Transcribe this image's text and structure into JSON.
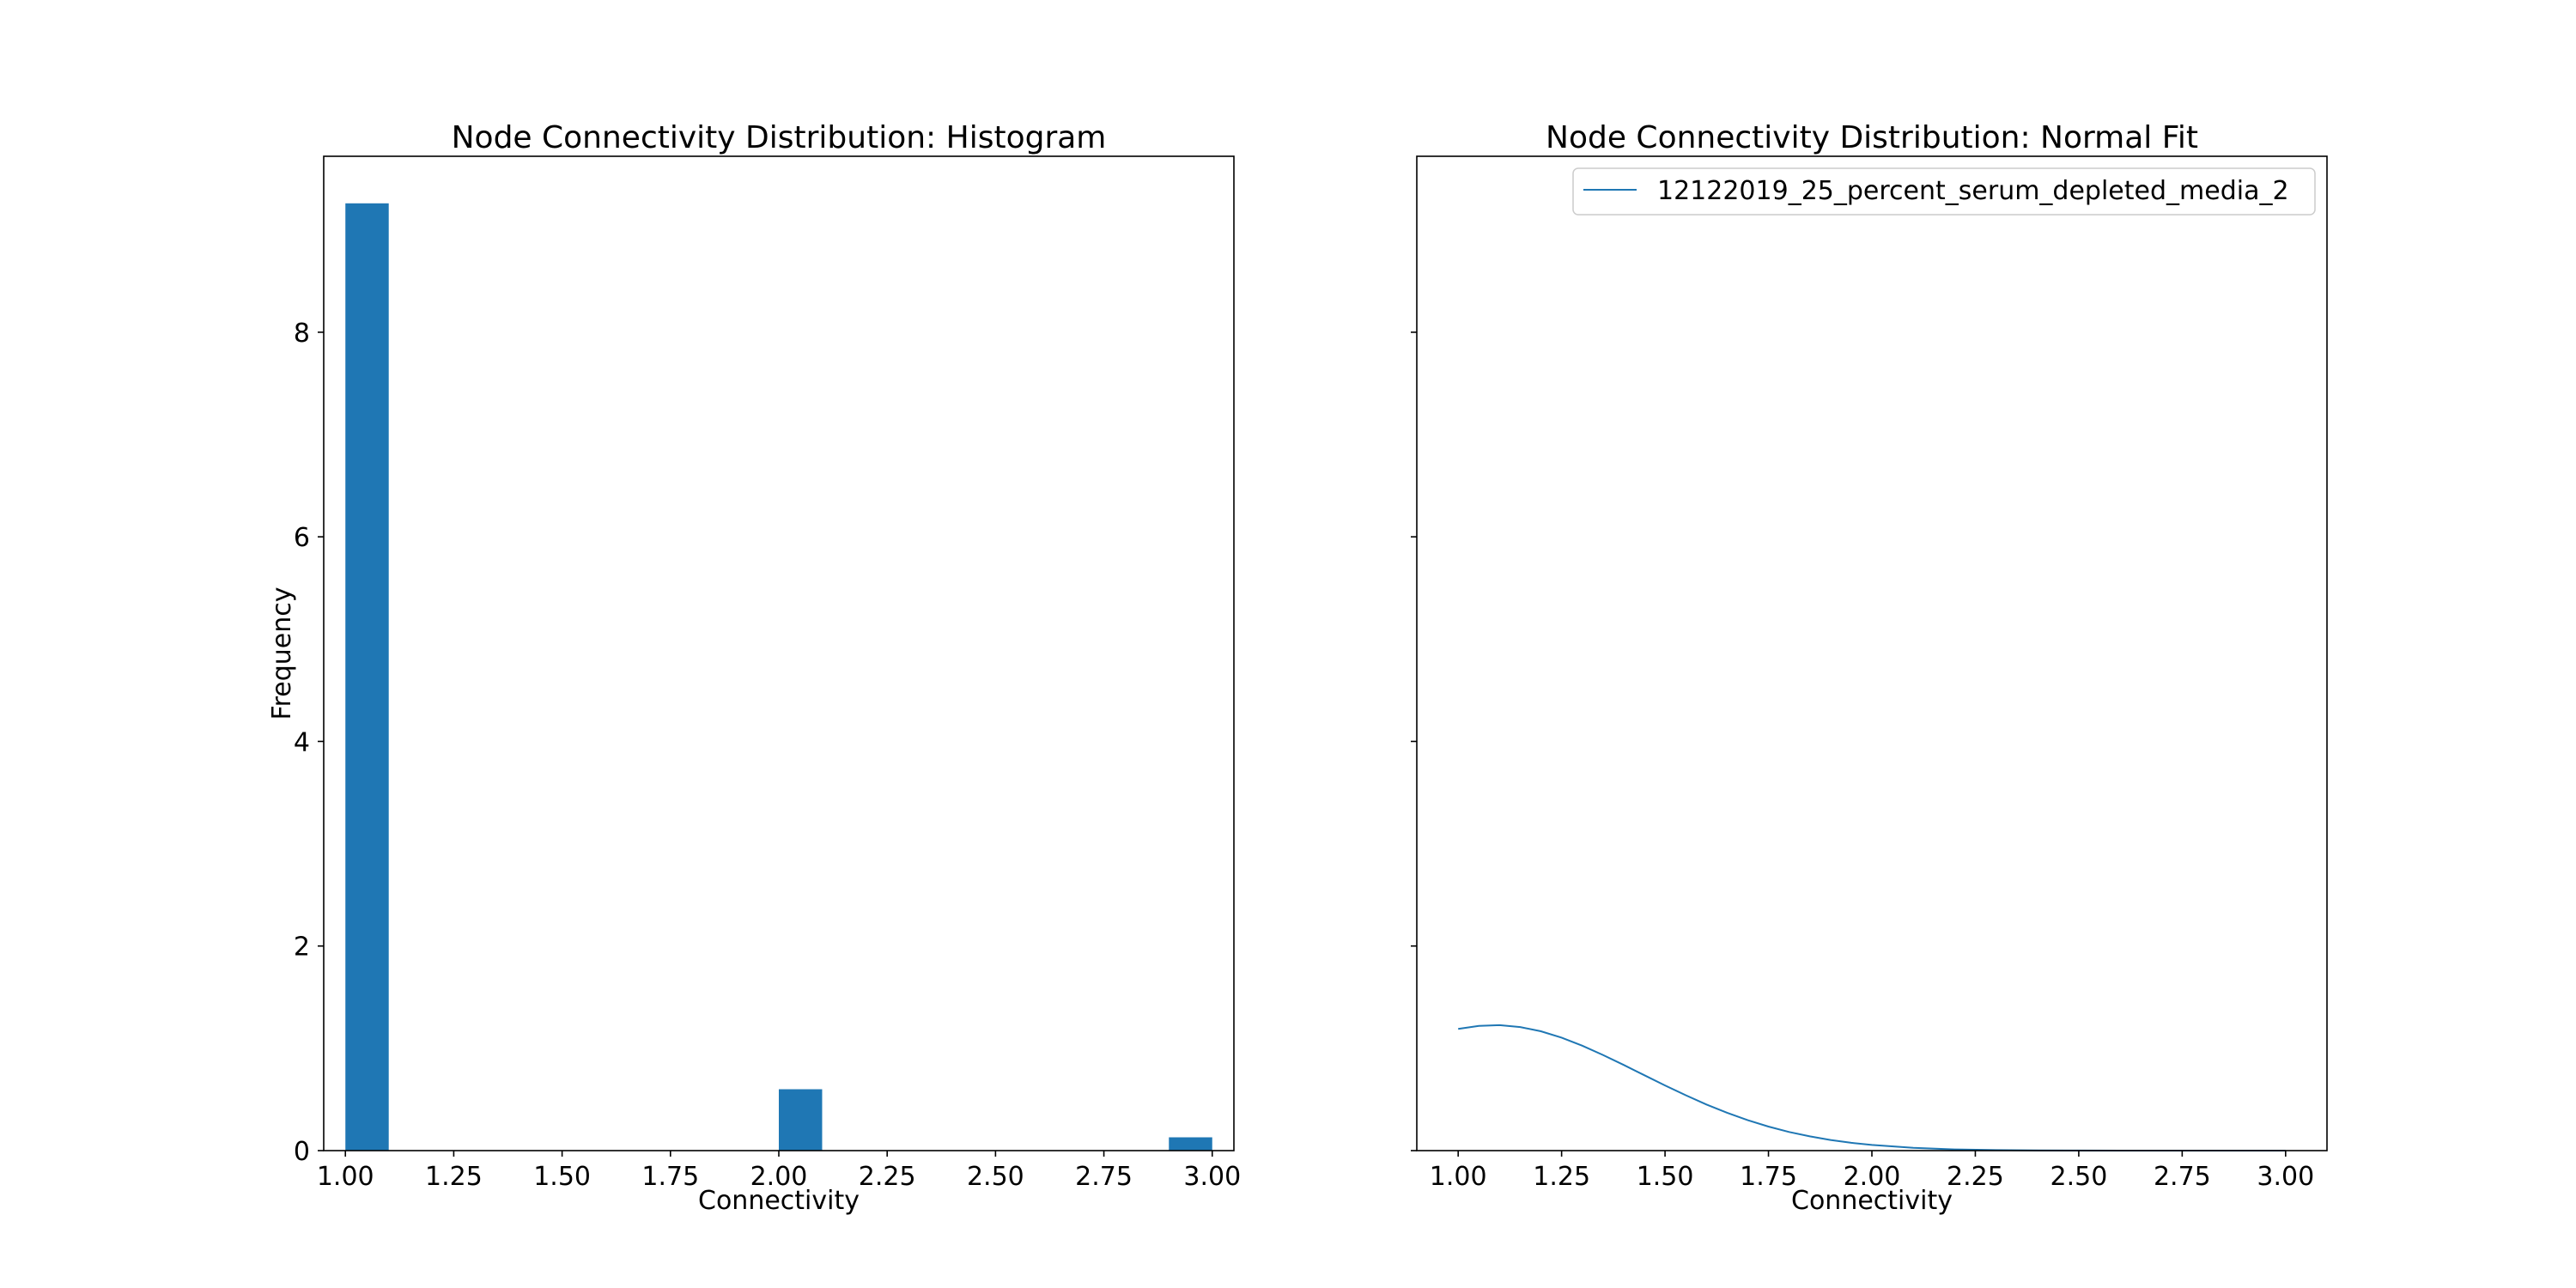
{
  "colors": {
    "series": "#1f77b4",
    "axes": "#000000",
    "legend_border": "#cccccc",
    "background": "#ffffff"
  },
  "chart_data": [
    {
      "type": "bar",
      "title": "Node Connectivity Distribution: Histogram",
      "xlabel": "Connectivity",
      "ylabel": "Frequency",
      "xlim": [
        0.95,
        3.05
      ],
      "ylim": [
        0,
        9.72
      ],
      "xticks": [
        1.0,
        1.25,
        1.5,
        1.75,
        2.0,
        2.25,
        2.5,
        2.75,
        3.0
      ],
      "xtick_labels": [
        "1.00",
        "1.25",
        "1.50",
        "1.75",
        "2.00",
        "2.25",
        "2.50",
        "2.75",
        "3.00"
      ],
      "yticks": [
        0,
        2,
        4,
        6,
        8
      ],
      "ytick_labels": [
        "0",
        "2",
        "4",
        "6",
        "8"
      ],
      "bars": [
        {
          "x0": 1.0,
          "x1": 1.1,
          "value": 9.26
        },
        {
          "x0": 2.0,
          "x1": 2.1,
          "value": 0.6
        },
        {
          "x0": 2.9,
          "x1": 3.0,
          "value": 0.13
        }
      ],
      "grid": false,
      "legend": null
    },
    {
      "type": "line",
      "title": "Node Connectivity Distribution: Normal Fit",
      "xlabel": "Connectivity",
      "ylabel": "",
      "xlim": [
        0.9,
        3.1
      ],
      "ylim": [
        0,
        9.72
      ],
      "xticks": [
        1.0,
        1.25,
        1.5,
        1.75,
        2.0,
        2.25,
        2.5,
        2.75,
        3.0
      ],
      "xtick_labels": [
        "1.00",
        "1.25",
        "1.50",
        "1.75",
        "2.00",
        "2.25",
        "2.50",
        "2.75",
        "3.00"
      ],
      "yticks": [
        0,
        2,
        4,
        6,
        8
      ],
      "ytick_labels": [
        "",
        "",
        "",
        "",
        ""
      ],
      "series": [
        {
          "name": "12122019_25_percent_serum_depleted_media_2",
          "x": [
            1.0,
            1.05,
            1.1,
            1.15,
            1.2,
            1.25,
            1.3,
            1.35,
            1.4,
            1.45,
            1.5,
            1.55,
            1.6,
            1.65,
            1.7,
            1.75,
            1.8,
            1.85,
            1.9,
            1.95,
            2.0,
            2.1,
            2.2,
            2.3,
            2.4,
            2.5,
            2.6,
            2.7,
            2.8,
            2.9,
            3.0
          ],
          "y": [
            1.189,
            1.219,
            1.226,
            1.208,
            1.167,
            1.105,
            1.026,
            0.935,
            0.838,
            0.737,
            0.637,
            0.541,
            0.451,
            0.37,
            0.297,
            0.235,
            0.182,
            0.139,
            0.104,
            0.076,
            0.055,
            0.027,
            0.012,
            0.005,
            0.002,
            0.001,
            0.0,
            0.0,
            0.0,
            0.0,
            0.0
          ]
        }
      ],
      "grid": false,
      "legend": "top-right"
    }
  ]
}
